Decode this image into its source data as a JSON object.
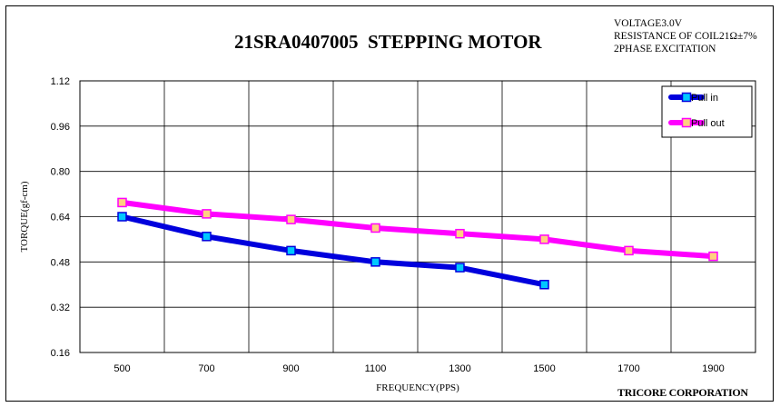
{
  "chart_data": {
    "type": "line",
    "title": "21SRA0407005  STEPPING MOTOR",
    "notes": [
      "VOLTAGE3.0V",
      "RESISTANCE OF COIL21Ω±7%",
      "2PHASE EXCITATION"
    ],
    "company": "TRICORE CORPORATION",
    "xlabel": "FREQUENCY(PPS)",
    "ylabel": "TORQUE(gf-cm)",
    "x_ticks": [
      "500",
      "700",
      "900",
      "1100",
      "1300",
      "1500",
      "1700",
      "1900"
    ],
    "y_ticks": [
      "1.12",
      "0.96",
      "0.80",
      "0.64",
      "0.48",
      "0.32",
      "0.16"
    ],
    "xlim": [
      400,
      2000
    ],
    "ylim": [
      0.16,
      1.12
    ],
    "grid": true,
    "legend": "top-right",
    "series": [
      {
        "name": "Pull in",
        "color": "#0000dd",
        "marker_color": "#00c8ff",
        "x": [
          500,
          700,
          900,
          1100,
          1300,
          1500
        ],
        "y": [
          0.64,
          0.57,
          0.52,
          0.48,
          0.46,
          0.4
        ]
      },
      {
        "name": "Pull out",
        "color": "#ff00ff",
        "marker_color": "#ffd080",
        "x": [
          500,
          700,
          900,
          1100,
          1300,
          1500,
          1700,
          1900
        ],
        "y": [
          0.69,
          0.65,
          0.63,
          0.6,
          0.58,
          0.56,
          0.52,
          0.5
        ]
      }
    ]
  }
}
